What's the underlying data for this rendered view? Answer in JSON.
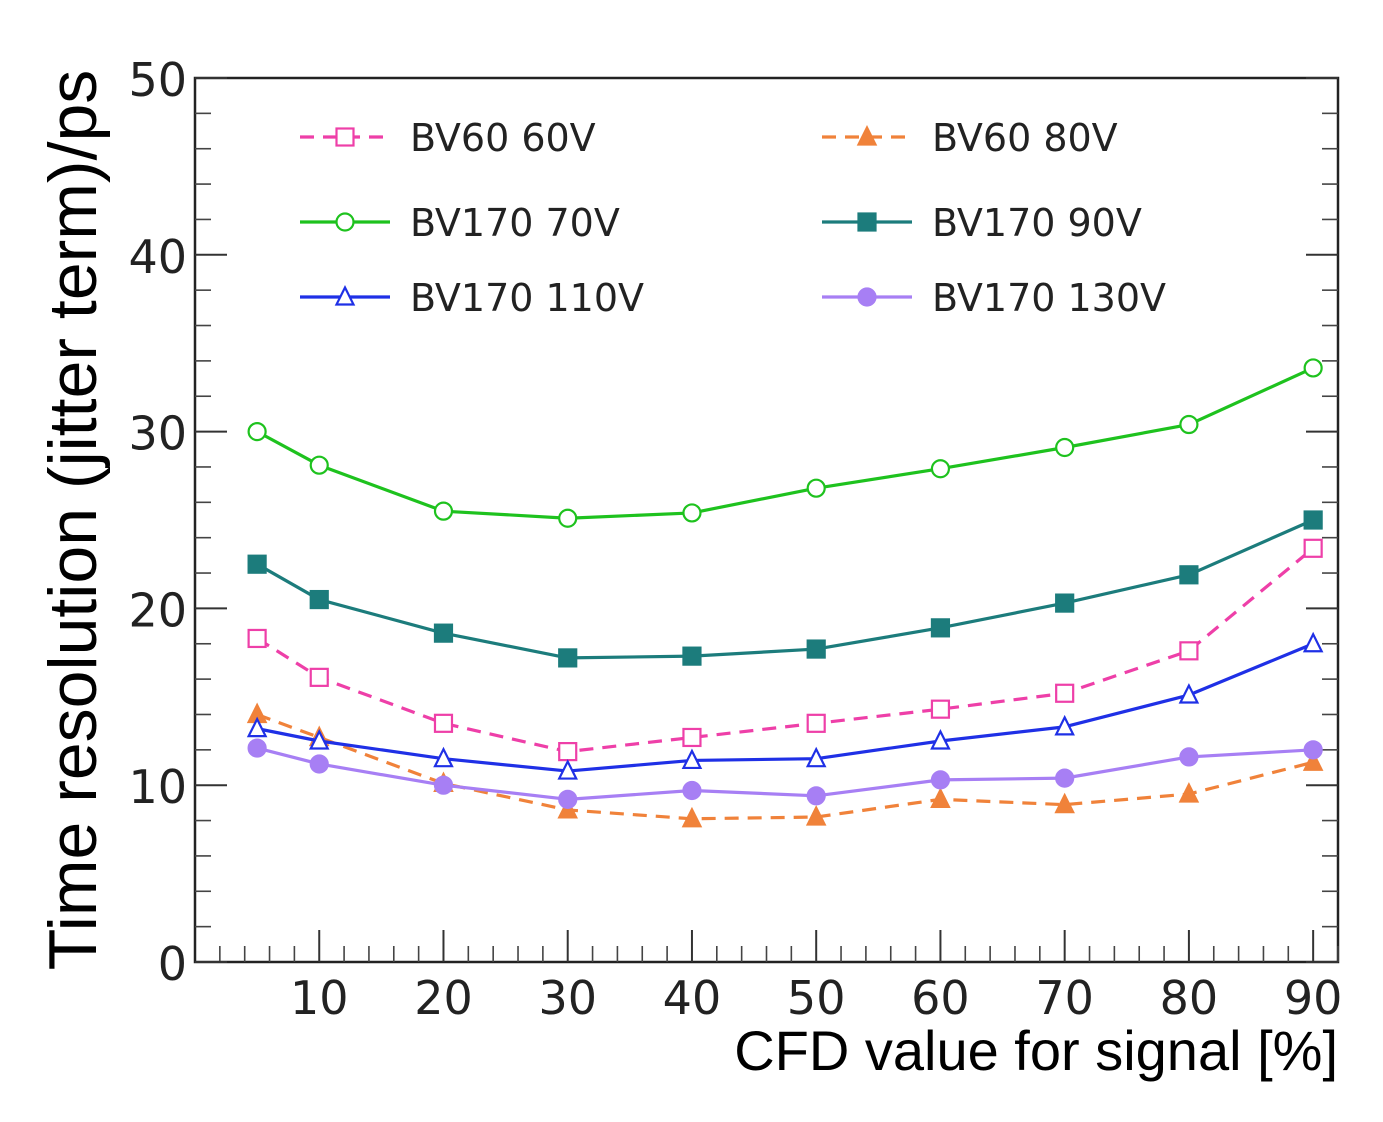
{
  "chart_data": {
    "type": "line",
    "title": "",
    "xlabel": "CFD value for signal [%]",
    "ylabel": "Time resolution (jitter term)/ps",
    "xlim": [
      0,
      92
    ],
    "ylim": [
      0,
      50
    ],
    "x_ticks": [
      10,
      20,
      30,
      40,
      50,
      60,
      70,
      80,
      90
    ],
    "y_ticks": [
      0,
      10,
      20,
      30,
      40,
      50
    ],
    "x": [
      5,
      10,
      20,
      30,
      40,
      50,
      60,
      70,
      80,
      90
    ],
    "legend_position": "top",
    "series": [
      {
        "name": "BV60 60V",
        "color": "#ee3fa8",
        "marker": "open-square",
        "dash": true,
        "values": [
          18.3,
          16.1,
          13.5,
          11.9,
          12.7,
          13.5,
          14.3,
          15.2,
          17.6,
          23.4
        ]
      },
      {
        "name": "BV60 80V",
        "color": "#f0823a",
        "marker": "filled-triangle",
        "dash": true,
        "values": [
          14.0,
          12.7,
          10.1,
          8.6,
          8.1,
          8.2,
          9.2,
          8.9,
          9.5,
          11.3
        ]
      },
      {
        "name": "BV170 70V",
        "color": "#1ec21e",
        "marker": "open-circle",
        "dash": false,
        "values": [
          30.0,
          28.1,
          25.5,
          25.1,
          25.4,
          26.8,
          27.9,
          29.1,
          30.4,
          33.6
        ]
      },
      {
        "name": "BV170 90V",
        "color": "#1c7c7c",
        "marker": "filled-square",
        "dash": false,
        "values": [
          22.5,
          20.5,
          18.6,
          17.2,
          17.3,
          17.7,
          18.9,
          20.3,
          21.9,
          25.0
        ]
      },
      {
        "name": "BV170 110V",
        "color": "#1f30e6",
        "marker": "open-triangle",
        "dash": false,
        "values": [
          13.2,
          12.5,
          11.5,
          10.8,
          11.4,
          11.5,
          12.5,
          13.3,
          15.1,
          18.0
        ]
      },
      {
        "name": "BV170 130V",
        "color": "#a77ff4",
        "marker": "filled-circle",
        "dash": false,
        "values": [
          12.1,
          11.2,
          10.0,
          9.2,
          9.7,
          9.4,
          10.3,
          10.4,
          11.6,
          12.0
        ]
      }
    ]
  }
}
